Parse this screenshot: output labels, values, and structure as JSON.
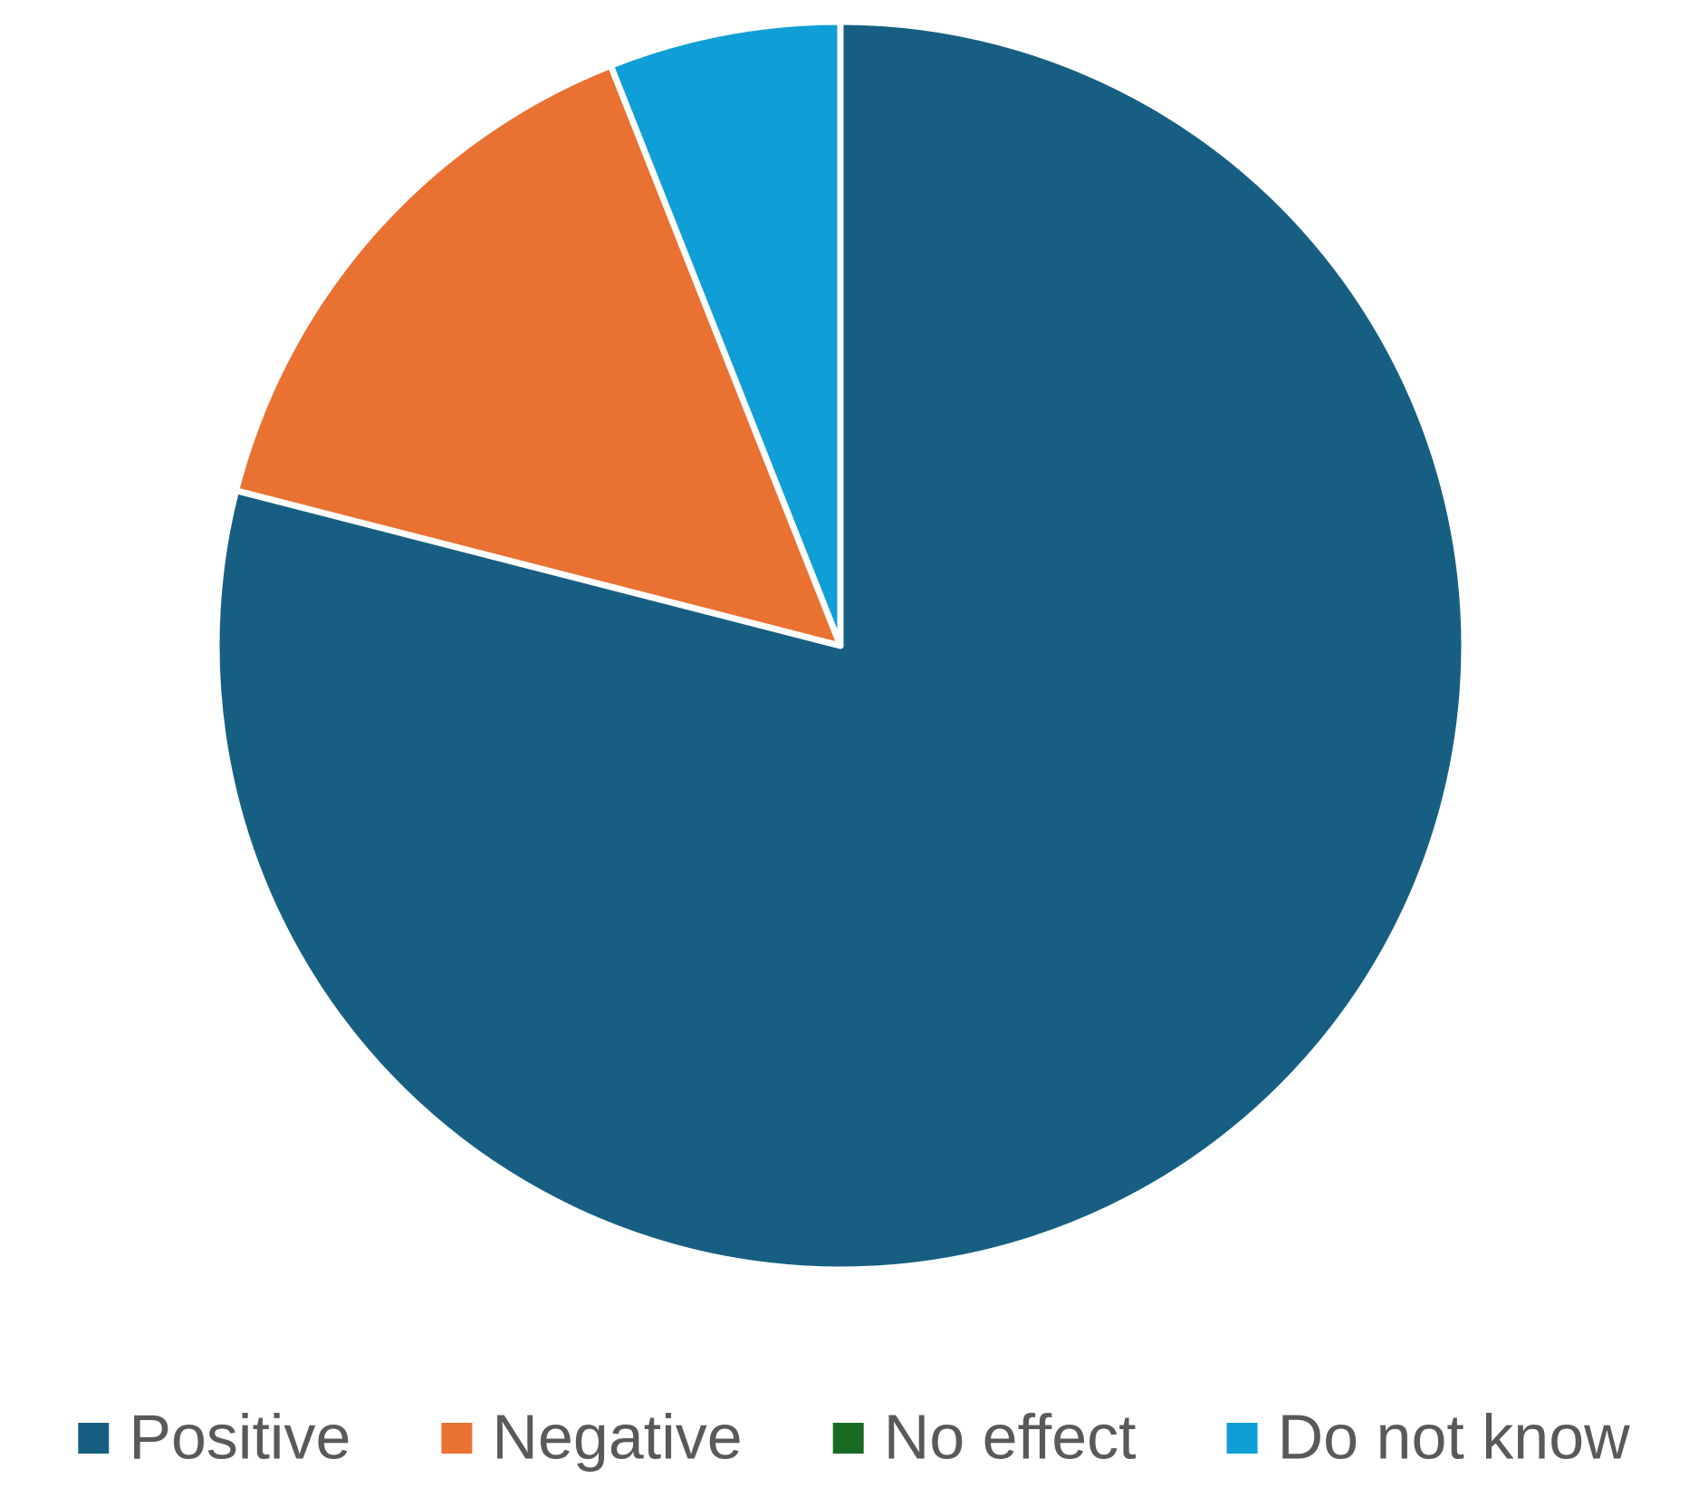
{
  "chart_data": {
    "type": "pie",
    "categories": [
      "Positive",
      "Negative",
      "No effect",
      "Do not know"
    ],
    "values": [
      79,
      15,
      0,
      6
    ],
    "colors": [
      "#175f82",
      "#e97132",
      "#196b24",
      "#0f9ed5"
    ],
    "legend": "bottom"
  }
}
